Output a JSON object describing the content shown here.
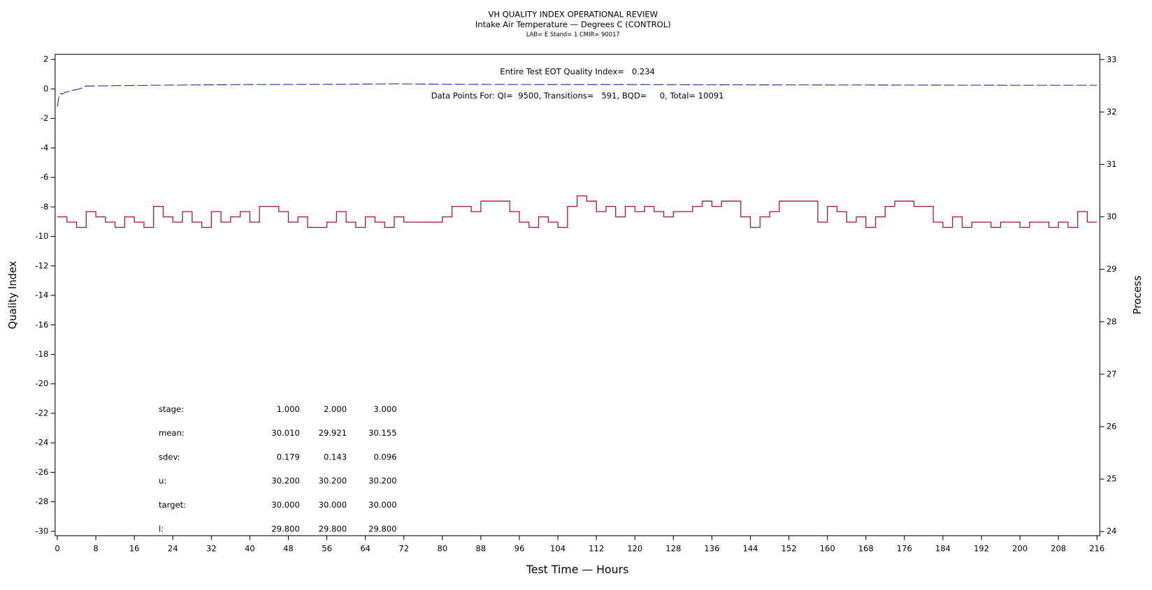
{
  "chart_data": {
    "type": "line",
    "title": "VH QUALITY INDEX OPERATIONAL REVIEW",
    "subtitle": "Intake Air Temperature — Degrees C (CONTROL)",
    "subtitle2": "LAB= E Stand= 1 CMIR= 90017",
    "annotations": [
      "Entire Test EOT Quality Index=   0.234",
      "Data Points For: QI=  9500, Transitions=   591, BQD=     0, Total= 10091"
    ],
    "x_label": "Test Time — Hours",
    "y_label": "Quality Index",
    "y2_label": "Process",
    "xlim": [
      -0.46,
      216.6
    ],
    "ylim": [
      -30.3,
      2.35
    ],
    "y2lim": [
      23.92,
      33.1
    ],
    "xticks": [
      0,
      8,
      16,
      24,
      32,
      40,
      48,
      56,
      64,
      72,
      80,
      88,
      96,
      104,
      112,
      120,
      128,
      136,
      144,
      152,
      160,
      168,
      176,
      184,
      192,
      200,
      208,
      216
    ],
    "yticks": [
      -30,
      -28,
      -26,
      -24,
      -22,
      -20,
      -18,
      -16,
      -14,
      -12,
      -10,
      -8,
      -6,
      -4,
      -2,
      0,
      2
    ],
    "y2ticks": [
      24,
      25,
      26,
      27,
      28,
      29,
      30,
      31,
      32,
      33
    ],
    "series": [
      {
        "name": "Quality Index",
        "color": "#1a1aa6",
        "axis": "y",
        "x": [
          0,
          0.3,
          0.6,
          1,
          1.5,
          2,
          3,
          4,
          5,
          6,
          8,
          12,
          20,
          40,
          60,
          70,
          80,
          100,
          120,
          140,
          160,
          180,
          200,
          216
        ],
        "values": [
          -1.2,
          -0.6,
          -0.3,
          -0.35,
          -0.25,
          -0.2,
          -0.1,
          -0.05,
          0.05,
          0.2,
          0.2,
          0.22,
          0.25,
          0.3,
          0.32,
          0.35,
          0.32,
          0.3,
          0.3,
          0.28,
          0.27,
          0.26,
          0.25,
          0.25
        ]
      },
      {
        "name": "Process",
        "color": "#a8102c",
        "axis": "y2",
        "x": [
          0,
          2,
          4,
          6,
          8,
          10,
          12,
          14,
          16,
          18,
          20,
          22,
          24,
          26,
          28,
          30,
          32,
          34,
          36,
          38,
          40,
          42,
          44,
          46,
          48,
          50,
          52,
          54,
          56,
          58,
          60,
          62,
          64,
          66,
          68,
          70,
          72,
          74,
          76,
          78,
          80,
          82,
          84,
          86,
          88,
          90,
          92,
          94,
          96,
          98,
          100,
          102,
          104,
          106,
          108,
          110,
          112,
          114,
          116,
          118,
          120,
          122,
          124,
          126,
          128,
          130,
          132,
          134,
          136,
          138,
          140,
          142,
          144,
          146,
          148,
          150,
          152,
          154,
          156,
          158,
          160,
          162,
          164,
          166,
          168,
          170,
          172,
          174,
          176,
          178,
          180,
          182,
          184,
          186,
          188,
          190,
          192,
          194,
          196,
          198,
          200,
          202,
          204,
          206,
          208,
          210,
          212,
          214,
          216
        ],
        "values": [
          30.0,
          29.9,
          29.8,
          30.1,
          30.0,
          29.9,
          29.8,
          30.0,
          29.9,
          29.8,
          30.2,
          30.0,
          29.9,
          30.1,
          29.9,
          29.8,
          30.1,
          29.9,
          30.0,
          30.1,
          29.9,
          30.2,
          30.2,
          30.1,
          29.9,
          30.0,
          29.8,
          29.8,
          29.9,
          30.1,
          29.9,
          29.8,
          30.0,
          29.9,
          29.8,
          30.0,
          29.9,
          29.9,
          29.9,
          29.9,
          30.0,
          30.2,
          30.2,
          30.1,
          30.3,
          30.3,
          30.3,
          30.1,
          29.9,
          29.8,
          30.0,
          29.9,
          29.8,
          30.2,
          30.4,
          30.3,
          30.1,
          30.2,
          30.0,
          30.2,
          30.1,
          30.2,
          30.1,
          30.0,
          30.1,
          30.1,
          30.2,
          30.3,
          30.2,
          30.3,
          30.3,
          30.0,
          29.8,
          30.0,
          30.1,
          30.3,
          30.3,
          30.3,
          30.3,
          29.9,
          30.2,
          30.1,
          29.9,
          30.0,
          29.8,
          30.0,
          30.2,
          30.3,
          30.3,
          30.2,
          30.2,
          29.9,
          29.8,
          30.0,
          29.8,
          29.9,
          29.9,
          29.8,
          29.9,
          29.9,
          29.8,
          29.9,
          29.9,
          29.8,
          29.9,
          29.8,
          30.1,
          29.9,
          29.9
        ]
      }
    ],
    "stats_table": [
      [
        "stage:",
        "1.000",
        "2.000",
        "3.000"
      ],
      [
        "mean:",
        "30.010",
        "29.921",
        "30.155"
      ],
      [
        "sdev:",
        "0.179",
        "0.143",
        "0.096"
      ],
      [
        "u:",
        "30.200",
        "30.200",
        "30.200"
      ],
      [
        "target:",
        "30.000",
        "30.000",
        "30.000"
      ],
      [
        "l:",
        "29.800",
        "29.800",
        "29.800"
      ]
    ]
  }
}
